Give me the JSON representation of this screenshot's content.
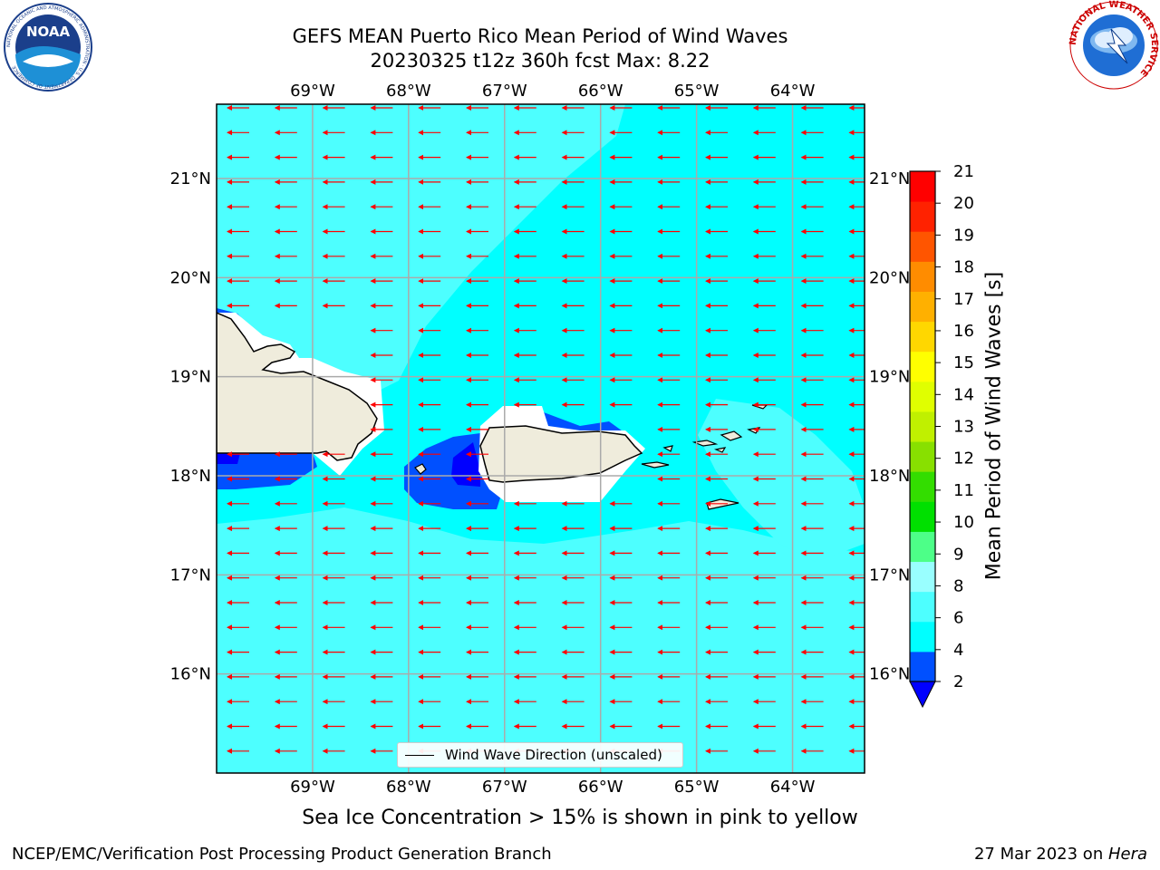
{
  "header": {
    "title_line1": "GEFS MEAN Puerto Rico Mean Period of Wind Waves",
    "title_line2": "20230325 t12z 360h fcst   Max: 8.22"
  },
  "logos": {
    "left": {
      "name": "noaa-logo",
      "text": "NOAA",
      "ring_text": "NATIONAL OCEANIC AND ATMOSPHERIC ADMINISTRATION · U.S. DEPARTMENT OF COMMERCE"
    },
    "right": {
      "name": "nws-logo",
      "ring_text": "NATIONAL WEATHER SERVICE"
    }
  },
  "map": {
    "lon_labels": [
      "69°W",
      "68°W",
      "67°W",
      "66°W",
      "65°W",
      "64°W"
    ],
    "lat_labels": [
      "21°N",
      "20°N",
      "19°N",
      "18°N",
      "17°N",
      "16°N"
    ],
    "lon_range": [
      -70.0,
      -63.25
    ],
    "lat_range": [
      15.0,
      21.75
    ],
    "lon_ticks": [
      -69,
      -68,
      -67,
      -66,
      -65,
      -64
    ],
    "lat_ticks": [
      21,
      20,
      19,
      18,
      17,
      16
    ],
    "arrow_color": "#ff0000",
    "grid": true,
    "land_color": "#efecdc",
    "ocean_base_color": "#00ffff",
    "ocean_secondary_color": "#4dffff"
  },
  "colorbar": {
    "label": "Mean Period of Wind Waves [s]",
    "ticks": [
      "21",
      "20",
      "19",
      "18",
      "17",
      "16",
      "15",
      "14",
      "13",
      "12",
      "11",
      "10",
      "9",
      "8",
      "6",
      "4",
      "2"
    ],
    "levels": [
      2,
      4,
      6,
      8,
      9,
      10,
      11,
      12,
      13,
      14,
      15,
      16,
      17,
      18,
      19,
      20,
      21
    ],
    "colors": [
      "#0050ff",
      "#00ffff",
      "#4dffff",
      "#99ffff",
      "#4dff88",
      "#00e000",
      "#33dd00",
      "#88e000",
      "#c0f000",
      "#e0ff00",
      "#ffff00",
      "#ffd700",
      "#ffb000",
      "#ff8c00",
      "#ff5500",
      "#ff2200",
      "#ff0000"
    ],
    "under_color": "#0000ff"
  },
  "legend": {
    "label": "Wind Wave Direction (unscaled)"
  },
  "footer": {
    "ice_note": "Sea Ice Concentration > 15% is shown in pink to yellow",
    "left": "NCEP/EMC/Verification Post Processing Product Generation Branch",
    "right_prefix": "27 Mar 2023 on ",
    "right_host": "Hera"
  }
}
